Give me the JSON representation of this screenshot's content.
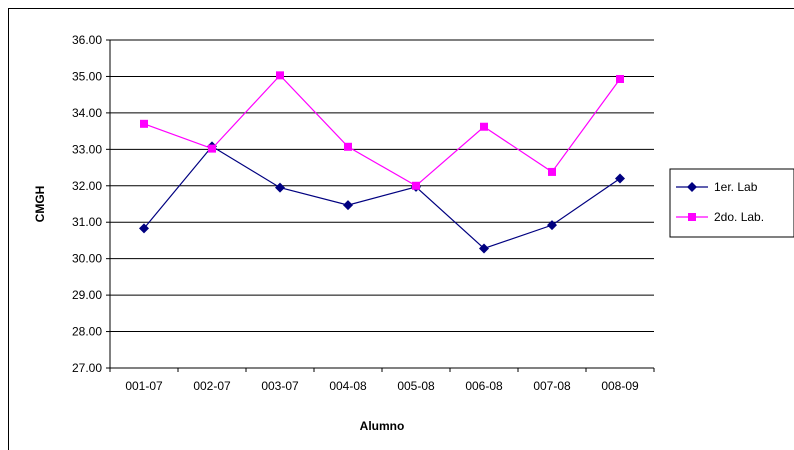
{
  "chart_data": {
    "type": "line",
    "xlabel": "Alumno",
    "ylabel": "CMGH",
    "categories": [
      "001-07",
      "002-07",
      "003-07",
      "004-08",
      "005-08",
      "006-08",
      "007-08",
      "008-09"
    ],
    "ylim": [
      27,
      36
    ],
    "ytick_step": 1,
    "ytick_labels": [
      "27.00",
      "28.00",
      "29.00",
      "30.00",
      "31.00",
      "32.00",
      "33.00",
      "34.00",
      "35.00",
      "36.00"
    ],
    "grid": true,
    "legend_position": "right",
    "series": [
      {
        "name": "1er. Lab",
        "color": "#000080",
        "marker": "diamond",
        "values": [
          30.83,
          33.08,
          31.95,
          31.47,
          31.97,
          30.28,
          30.92,
          32.2
        ]
      },
      {
        "name": "2do. Lab.",
        "color": "#ff00ff",
        "marker": "square",
        "values": [
          33.7,
          33.02,
          35.03,
          33.07,
          32.0,
          33.62,
          32.38,
          34.93
        ]
      }
    ]
  }
}
